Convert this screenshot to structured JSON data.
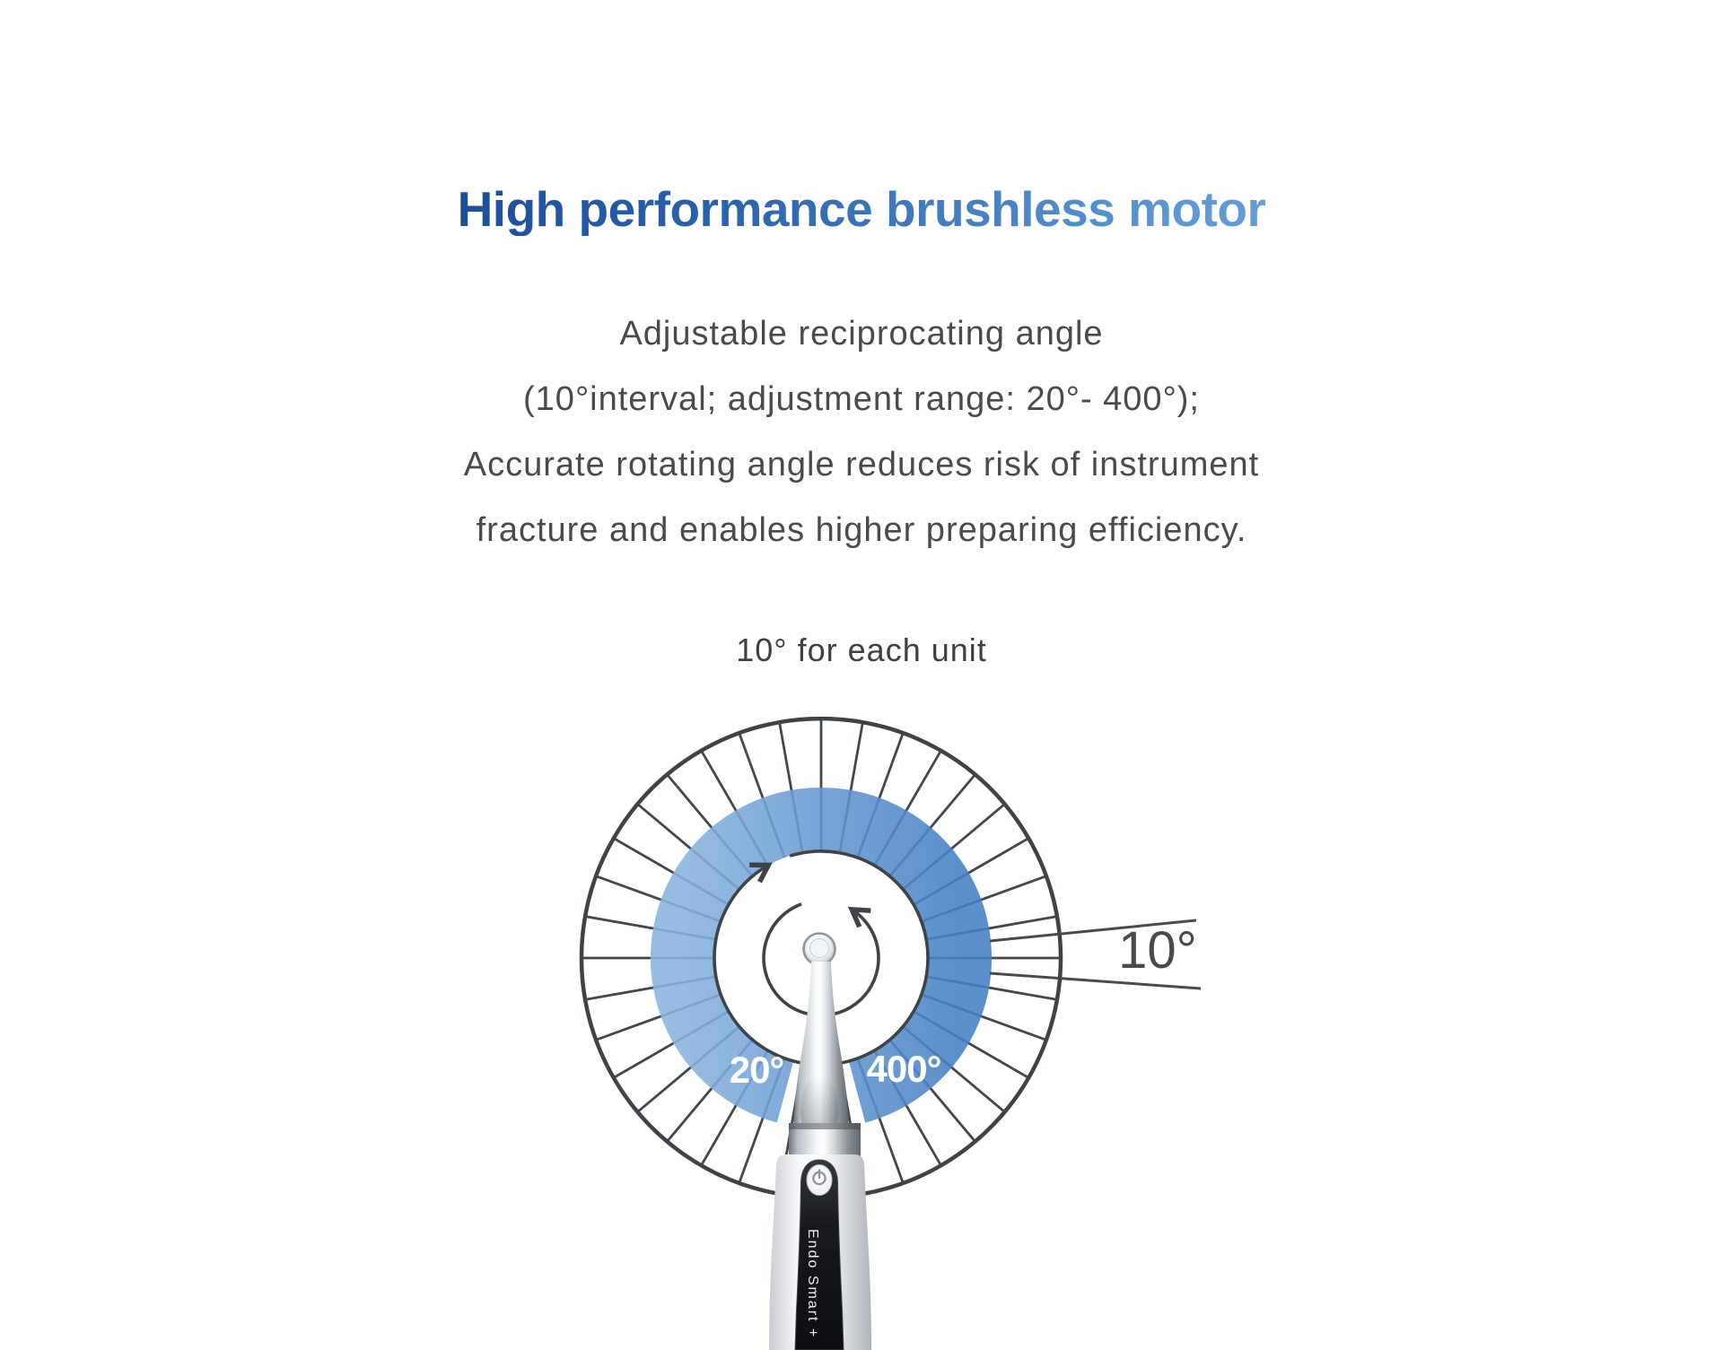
{
  "title": {
    "part_dark": "High performance",
    "part_light": "brushless motor"
  },
  "paragraph": {
    "lines": [
      "Adjustable reciprocating angle",
      "(10°interval; adjustment range: 20°- 400°);",
      "Accurate rotating angle reduces risk of instrument",
      "fracture and enables higher preparing efficiency."
    ]
  },
  "diagram": {
    "caption": "10° for each unit",
    "unit_angle_label": "10°",
    "min_angle_label": "20°",
    "max_angle_label": "400°",
    "segment_interval_degrees": 10,
    "range_min_degrees": 20,
    "range_max_degrees": 400,
    "icons": [
      "clockwise-arrow-icon",
      "counterclockwise-arrow-icon",
      "power-icon"
    ]
  },
  "device": {
    "label": "Endo Smart +"
  },
  "colors": {
    "title_gradient_start": "#17428f",
    "title_gradient_end": "#72a9de",
    "body_text": "#4a4a4a",
    "wheel_stroke": "#3f4348",
    "blue_ring_left": "#84b1dd",
    "blue_ring_right": "#4580c4",
    "label_white": "#ffffff",
    "panel_black": "#17191c"
  }
}
